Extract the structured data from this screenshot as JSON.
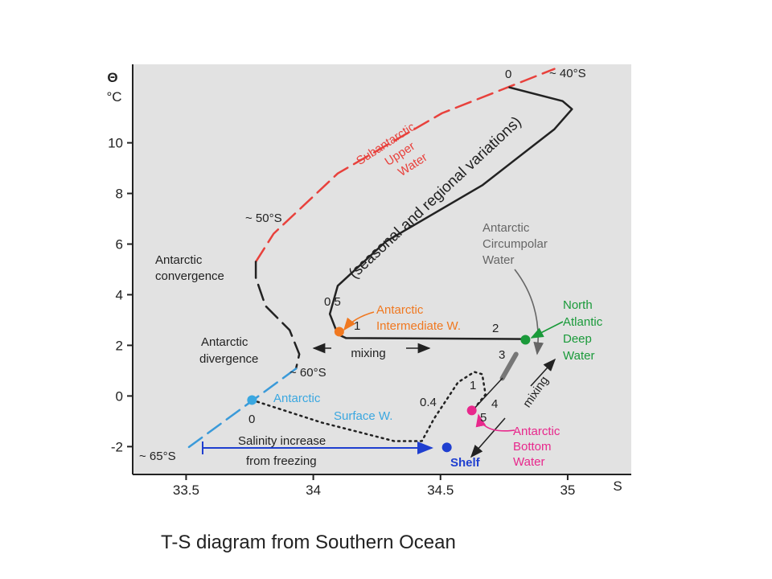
{
  "chart_data": {
    "type": "line",
    "caption": "T-S diagram from Southern Ocean",
    "x_label": "S",
    "y_label": "Θ",
    "y_unit": "°C",
    "xlim": [
      33.29,
      35.25
    ],
    "ylim": [
      -3.1,
      13.1
    ],
    "xticks": [
      33.5,
      34,
      34.5,
      35
    ],
    "yticks": [
      -2,
      0,
      2,
      4,
      6,
      8,
      10
    ],
    "series": [
      {
        "color": "#e8413c",
        "dash": "20,9",
        "width": 2.5,
        "x": [
          33.774,
          33.844,
          34.096,
          34.506,
          34.948
        ],
        "values": [
          5.3,
          6.41,
          8.79,
          11.17,
          12.92
        ]
      },
      {
        "color": "#222222",
        "dash": "20,9",
        "width": 2.5,
        "x": [
          33.774,
          33.774,
          33.812,
          33.907,
          33.945,
          33.932
        ],
        "values": [
          5.3,
          4.67,
          3.56,
          2.6,
          1.65,
          1.08
        ]
      },
      {
        "color": "#3a9ad9",
        "dash": "20,9",
        "width": 2.5,
        "x": [
          33.932,
          33.5
        ],
        "values": [
          1.08,
          -2.1
        ]
      },
      {
        "color": "#222222",
        "dash": "none",
        "width": 2.5,
        "x": [
          34.771,
          34.98,
          35.017,
          34.948,
          34.664,
          34.285,
          34.096,
          34.065,
          34.096,
          34.128,
          34.834
        ],
        "values": [
          12.19,
          11.65,
          11.33,
          10.54,
          8.32,
          6.1,
          4.35,
          3.24,
          2.44,
          2.29,
          2.25
        ]
      },
      {
        "color": "#777777",
        "dash": "none",
        "width": 6,
        "x": [
          34.797,
          34.743
        ],
        "values": [
          1.65,
          0.7
        ]
      },
      {
        "color": "#222222",
        "dash": "none",
        "width": 1.5,
        "x": [
          34.743,
          34.626
        ],
        "values": [
          0.7,
          -0.57
        ]
      },
      {
        "color": "#222222",
        "dash": "2,5",
        "width": 2.5,
        "x": [
          33.759,
          34.033,
          34.317,
          34.427,
          34.475,
          34.569,
          34.633,
          34.664,
          34.677,
          34.627
        ],
        "values": [
          -0.16,
          -1.05,
          -1.78,
          -1.78,
          -0.89,
          0.54,
          0.95,
          0.86,
          0.06,
          -0.57
        ]
      }
    ],
    "points": [
      {
        "color": "#f07820",
        "x": 34.102,
        "value": 2.54
      },
      {
        "color": "#1a9a3a",
        "x": 34.834,
        "value": 2.22
      },
      {
        "color": "#3aa7e0",
        "x": 33.759,
        "value": -0.16
      },
      {
        "color": "#e8288c",
        "x": 34.623,
        "value": -0.57
      },
      {
        "color": "#1f3fd0",
        "x": 34.525,
        "value": -2.03
      }
    ],
    "annotations": [
      "~ 40°S",
      "0",
      "Subantarctic",
      "Upper",
      "Water",
      "(seasonal and regional variations)",
      "~ 50°S",
      "Antarctic",
      "convergence",
      "Antarctic",
      "Circumpolar",
      "Water",
      "0.5",
      "Antarctic",
      "Intermediate W.",
      "North",
      "Atlantic",
      "Deep",
      "Water",
      "1",
      "2",
      "3",
      "Antarctic",
      "divergence",
      "mixing",
      "~ 60°S",
      "1",
      "4",
      "5",
      "mixing",
      "0.4",
      "Antarctic",
      "Surface  W.",
      "0",
      "Antarctic",
      "Bottom",
      "Water",
      "Salinity increase",
      "from freezing",
      "~ 65°S",
      "Shelf"
    ]
  }
}
